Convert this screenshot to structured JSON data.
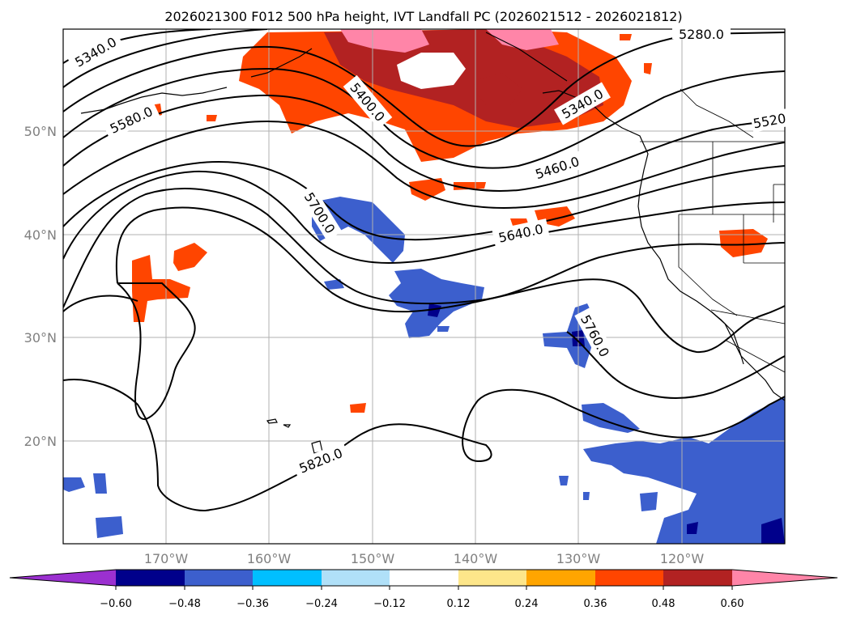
{
  "title": "2026021300 F012 500 hPa height, IVT Landfall PC (2026021512 - 2026021812)",
  "latitude_labels": [
    "50°N",
    "40°N",
    "30°N",
    "20°N"
  ],
  "longitude_labels": [
    "170°W",
    "160°W",
    "150°W",
    "140°W",
    "130°W",
    "120°W"
  ],
  "contour_labels": {
    "c5340_left": "5340.0",
    "c5280_top": "5280.0",
    "c5580": "5580.0",
    "c5400": "5400.0",
    "c5340_coast": "5340.0",
    "c5520": "5520",
    "c5460": "5460.0",
    "c5700": "5700.0",
    "c5640": "5640.0",
    "c5760": "5760.0",
    "c5820": "5820.0"
  },
  "colorbar": {
    "ticks": [
      "−0.60",
      "−0.48",
      "−0.36",
      "−0.24",
      "−0.12",
      "0.12",
      "0.24",
      "0.36",
      "0.48",
      "0.60"
    ],
    "colors": {
      "under": "#9b30d0",
      "bins": [
        "#00008b",
        "#3c5fcd",
        "#00bfff",
        "#b0e0f8",
        "#ffffff",
        "#fde68a",
        "#ffa500",
        "#ff4500",
        "#b22222",
        "#ff85a8"
      ],
      "over": "#ff85a8"
    }
  }
}
